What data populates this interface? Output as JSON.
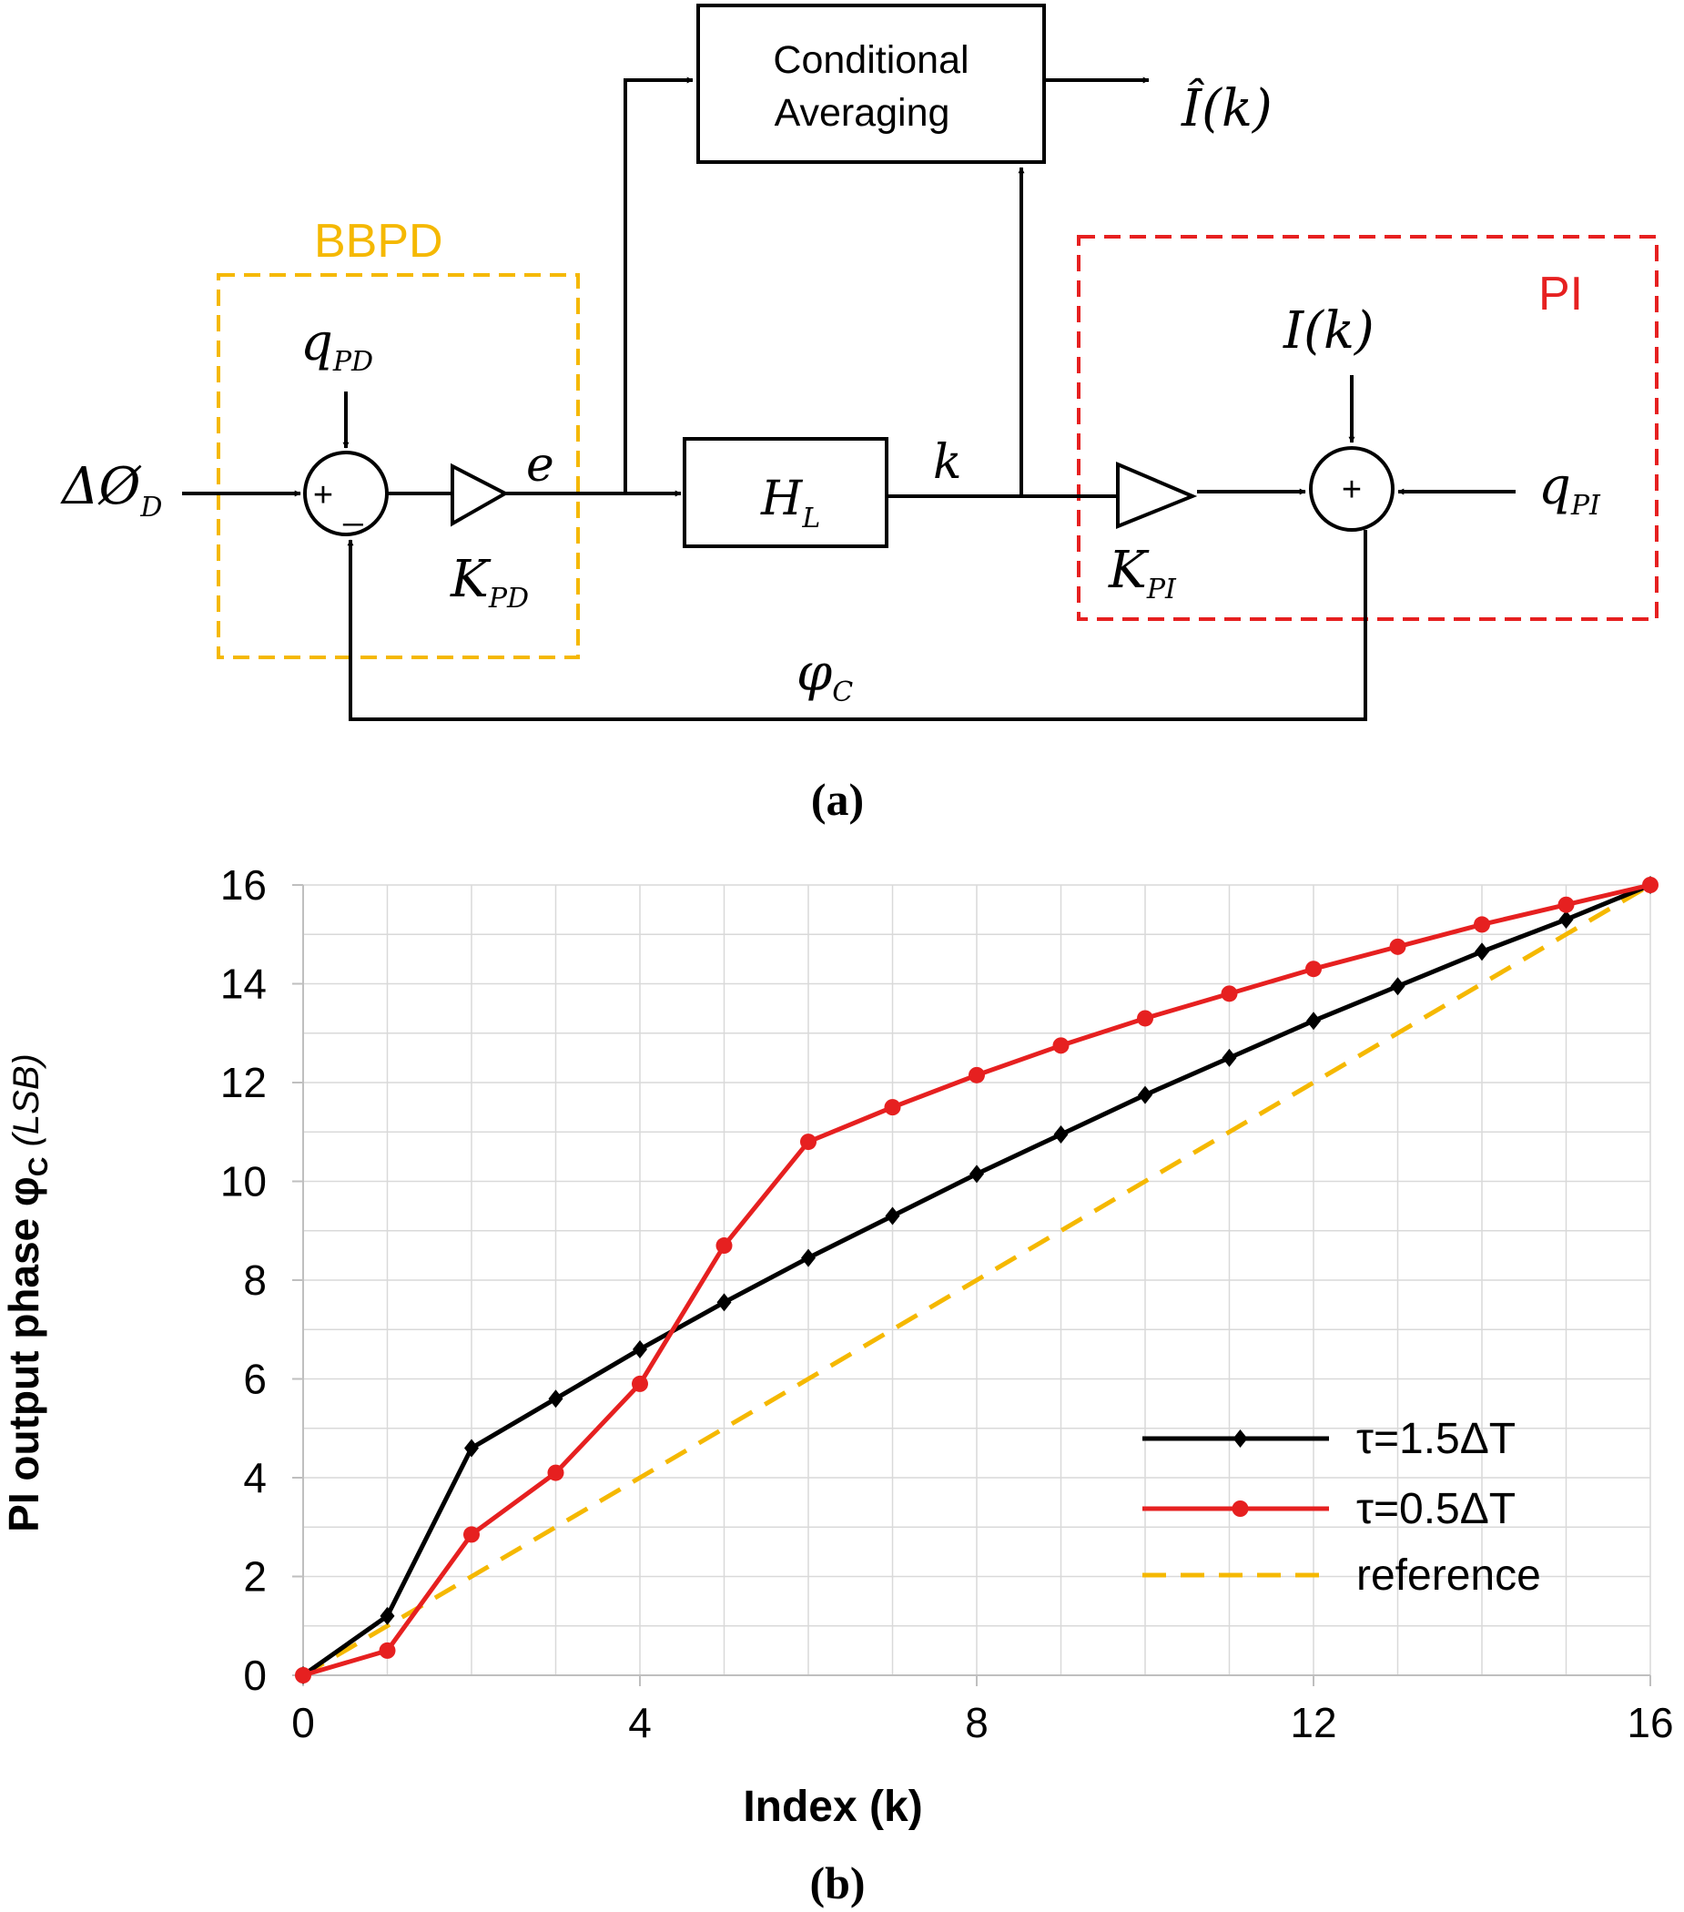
{
  "colors": {
    "bbpd": "#f5b800",
    "pi": "#e62020",
    "series_black": "#000000",
    "series_red": "#e62020",
    "reference": "#f5b800"
  },
  "diagram": {
    "conditional_averaging": [
      "Conditional",
      "Averaging"
    ],
    "output_estimate": "Î(k)",
    "bbpd_label": "BBPD",
    "pi_label": "PI",
    "input_phase": {
      "base": "ΔØ",
      "sub": "D"
    },
    "q_pd": {
      "base": "q",
      "sub": "PD"
    },
    "k_pd": {
      "base": "K",
      "sub": "PD"
    },
    "error_signal": "e",
    "filter": {
      "base": "H",
      "sub": "L"
    },
    "index_signal": "k",
    "i_k": "I(k)",
    "k_pi": {
      "base": "K",
      "sub": "PI"
    },
    "q_pi": {
      "base": "q",
      "sub": "PI"
    },
    "phi_c": {
      "base": "φ",
      "sub": "C"
    },
    "sum1_plus": "+",
    "sum1_minus": "_",
    "sum2_plus": "+",
    "panel_label": "(a)"
  },
  "chart_data": {
    "type": "line",
    "x": [
      0,
      1,
      2,
      3,
      4,
      5,
      6,
      7,
      8,
      9,
      10,
      11,
      12,
      13,
      14,
      15,
      16
    ],
    "series": [
      {
        "name": "τ=1.5ΔT",
        "color": "#000000",
        "marker": "diamond",
        "values": [
          0,
          1.2,
          4.6,
          5.6,
          6.6,
          7.55,
          8.45,
          9.3,
          10.15,
          10.95,
          11.75,
          12.5,
          13.25,
          13.95,
          14.65,
          15.3,
          16
        ]
      },
      {
        "name": "τ=0.5ΔT",
        "color": "#e62020",
        "marker": "circle",
        "values": [
          0,
          0.5,
          2.85,
          4.1,
          5.9,
          8.7,
          10.8,
          11.5,
          12.15,
          12.75,
          13.3,
          13.8,
          14.3,
          14.75,
          15.2,
          15.6,
          16
        ]
      },
      {
        "name": "reference",
        "color": "#f5b800",
        "marker": "none",
        "dashed": true,
        "values": [
          0,
          1,
          2,
          3,
          4,
          5,
          6,
          7,
          8,
          9,
          10,
          11,
          12,
          13,
          14,
          15,
          16
        ]
      }
    ],
    "xlim": [
      0,
      16
    ],
    "ylim": [
      0,
      16
    ],
    "xticks": [
      0,
      4,
      8,
      12,
      16
    ],
    "yticks": [
      0,
      2,
      4,
      6,
      8,
      10,
      12,
      14,
      16
    ],
    "xlabel": "Index (k)",
    "ylabel_main": "PI output phase φ",
    "ylabel_sub": "C",
    "ylabel_unit": "(LSB)",
    "grid": true,
    "legend_position": "bottom-right",
    "panel_label": "(b)"
  }
}
